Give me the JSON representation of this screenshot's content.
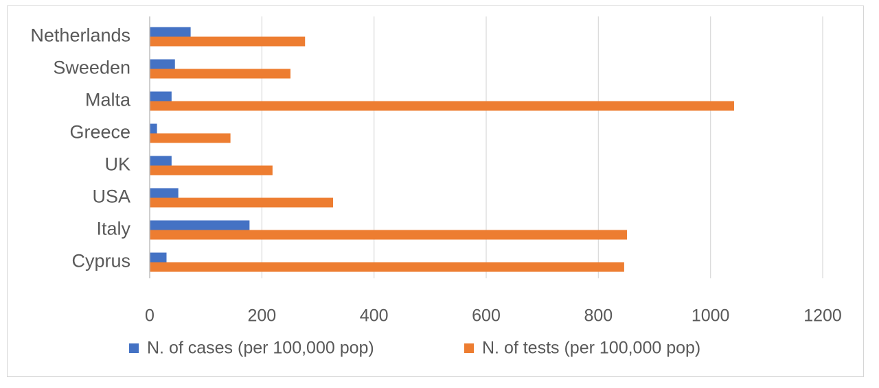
{
  "chart_data": {
    "type": "bar",
    "orientation": "horizontal",
    "categories": [
      "Netherlands",
      "Sweeden",
      "Malta",
      "Greece",
      "UK",
      "USA",
      "Italy",
      "Cyprus"
    ],
    "series": [
      {
        "name": "N. of cases (per 100,000 pop)",
        "color": "#4472C4",
        "values": [
          73,
          45,
          39,
          13,
          39,
          51,
          178,
          30
        ]
      },
      {
        "name": "N. of tests (per 100,000 pop)",
        "color": "#ED7D31",
        "values": [
          277,
          251,
          1042,
          144,
          219,
          327,
          851,
          846
        ]
      }
    ],
    "xlim": [
      0,
      1200
    ],
    "xticks": [
      0,
      200,
      400,
      600,
      800,
      1000,
      1200
    ],
    "xticks_labels": [
      "0",
      "200",
      "400",
      "600",
      "800",
      "1000",
      "1200"
    ],
    "grid": "vertical",
    "legend_position": "bottom",
    "title": "",
    "xlabel": "",
    "ylabel": ""
  }
}
